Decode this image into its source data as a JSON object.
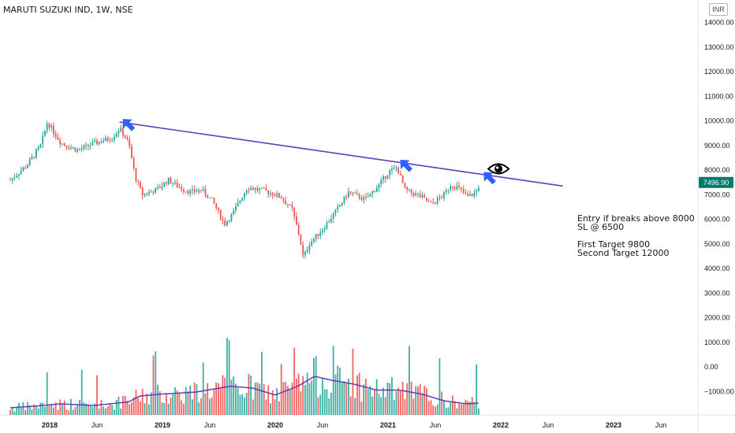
{
  "header": {
    "title": "MARUTI SUZUKI IND, 1W, NSE",
    "currency": "INR"
  },
  "notes": [
    "Entry if breaks above 8000",
    "SL @ 6500",
    "",
    "First Target 9800",
    "Second Target 12000"
  ],
  "chart_data": {
    "type": "candlestick",
    "price_axis_ticks": [
      14000,
      13000,
      12000,
      11000,
      10000,
      9000,
      8000,
      7000,
      6000,
      5000,
      4000,
      3000,
      2000,
      1000,
      0,
      -1000
    ],
    "price_axis_tick_labels": [
      "14000.00",
      "13000.00",
      "12000.00",
      "11000.00",
      "10000.00",
      "9000.00",
      "8000.00",
      "7000.00",
      "6000.00",
      "5000.00",
      "4000.00",
      "3000.00",
      "2000.00",
      "1000.00",
      "0.00",
      "−1000.00"
    ],
    "last_price": 7496.9,
    "last_price_label": "7496.90",
    "time_axis_labels": [
      "2018",
      "Jun",
      "2019",
      "Jun",
      "2020",
      "Jun",
      "2021",
      "Jun",
      "2022",
      "Jun",
      "2023",
      "Jun"
    ],
    "time_axis_years": [
      2018.0,
      2018.42,
      2019.0,
      2019.42,
      2020.0,
      2020.42,
      2021.0,
      2021.42,
      2022.0,
      2022.42,
      2023.0,
      2023.42
    ],
    "price_keypoints": [
      [
        2017.65,
        7600
      ],
      [
        2017.8,
        8200
      ],
      [
        2017.92,
        9000
      ],
      [
        2017.98,
        9950
      ],
      [
        2018.1,
        9100
      ],
      [
        2018.25,
        8800
      ],
      [
        2018.4,
        9100
      ],
      [
        2018.55,
        9300
      ],
      [
        2018.62,
        9700
      ],
      [
        2018.7,
        9100
      ],
      [
        2018.76,
        7700
      ],
      [
        2018.82,
        7000
      ],
      [
        2018.95,
        7200
      ],
      [
        2019.05,
        7600
      ],
      [
        2019.15,
        7300
      ],
      [
        2019.25,
        7100
      ],
      [
        2019.35,
        7200
      ],
      [
        2019.45,
        6700
      ],
      [
        2019.55,
        5800
      ],
      [
        2019.62,
        6200
      ],
      [
        2019.75,
        7300
      ],
      [
        2019.85,
        7200
      ],
      [
        2019.95,
        7100
      ],
      [
        2020.05,
        6900
      ],
      [
        2020.15,
        6400
      ],
      [
        2020.22,
        5200
      ],
      [
        2020.25,
        4400
      ],
      [
        2020.3,
        5000
      ],
      [
        2020.42,
        5600
      ],
      [
        2020.55,
        6400
      ],
      [
        2020.65,
        7100
      ],
      [
        2020.8,
        6800
      ],
      [
        2020.92,
        7400
      ],
      [
        2021.0,
        7900
      ],
      [
        2021.08,
        8100
      ],
      [
        2021.15,
        7200
      ],
      [
        2021.3,
        6900
      ],
      [
        2021.38,
        6600
      ],
      [
        2021.5,
        7000
      ],
      [
        2021.55,
        7400
      ],
      [
        2021.62,
        7300
      ],
      [
        2021.7,
        6900
      ],
      [
        2021.78,
        7100
      ],
      [
        2021.82,
        7500
      ]
    ],
    "volume_keypoints": [
      [
        2017.65,
        400
      ],
      [
        2017.9,
        500
      ],
      [
        2018.1,
        600
      ],
      [
        2018.4,
        520
      ],
      [
        2018.7,
        700
      ],
      [
        2018.8,
        1000
      ],
      [
        2019.0,
        1100
      ],
      [
        2019.3,
        1200
      ],
      [
        2019.6,
        1500
      ],
      [
        2019.8,
        1400
      ],
      [
        2020.0,
        1050
      ],
      [
        2020.2,
        1500
      ],
      [
        2020.35,
        2000
      ],
      [
        2020.5,
        1800
      ],
      [
        2020.7,
        1600
      ],
      [
        2020.9,
        1300
      ],
      [
        2021.1,
        1300
      ],
      [
        2021.3,
        1100
      ],
      [
        2021.5,
        750
      ],
      [
        2021.7,
        600
      ],
      [
        2021.82,
        650
      ]
    ],
    "trendline": {
      "start": [
        2018.62,
        9950
      ],
      "end": [
        2022.55,
        7350
      ]
    },
    "annotations": [
      {
        "type": "arrow",
        "x": 2018.62,
        "y": 9950
      },
      {
        "type": "arrow",
        "x": 2021.08,
        "y": 8290
      },
      {
        "type": "arrow",
        "x": 2021.82,
        "y": 7790
      },
      {
        "type": "eye-icon",
        "x": 2021.98,
        "y": 8050
      }
    ],
    "colors": {
      "up": "#26a69a",
      "down": "#ef5350",
      "trendline": "#673ab7",
      "volume_ma": "#673ab7",
      "arrow": "#2962ff",
      "last_price_tag": "#00796b"
    },
    "grid": false
  }
}
